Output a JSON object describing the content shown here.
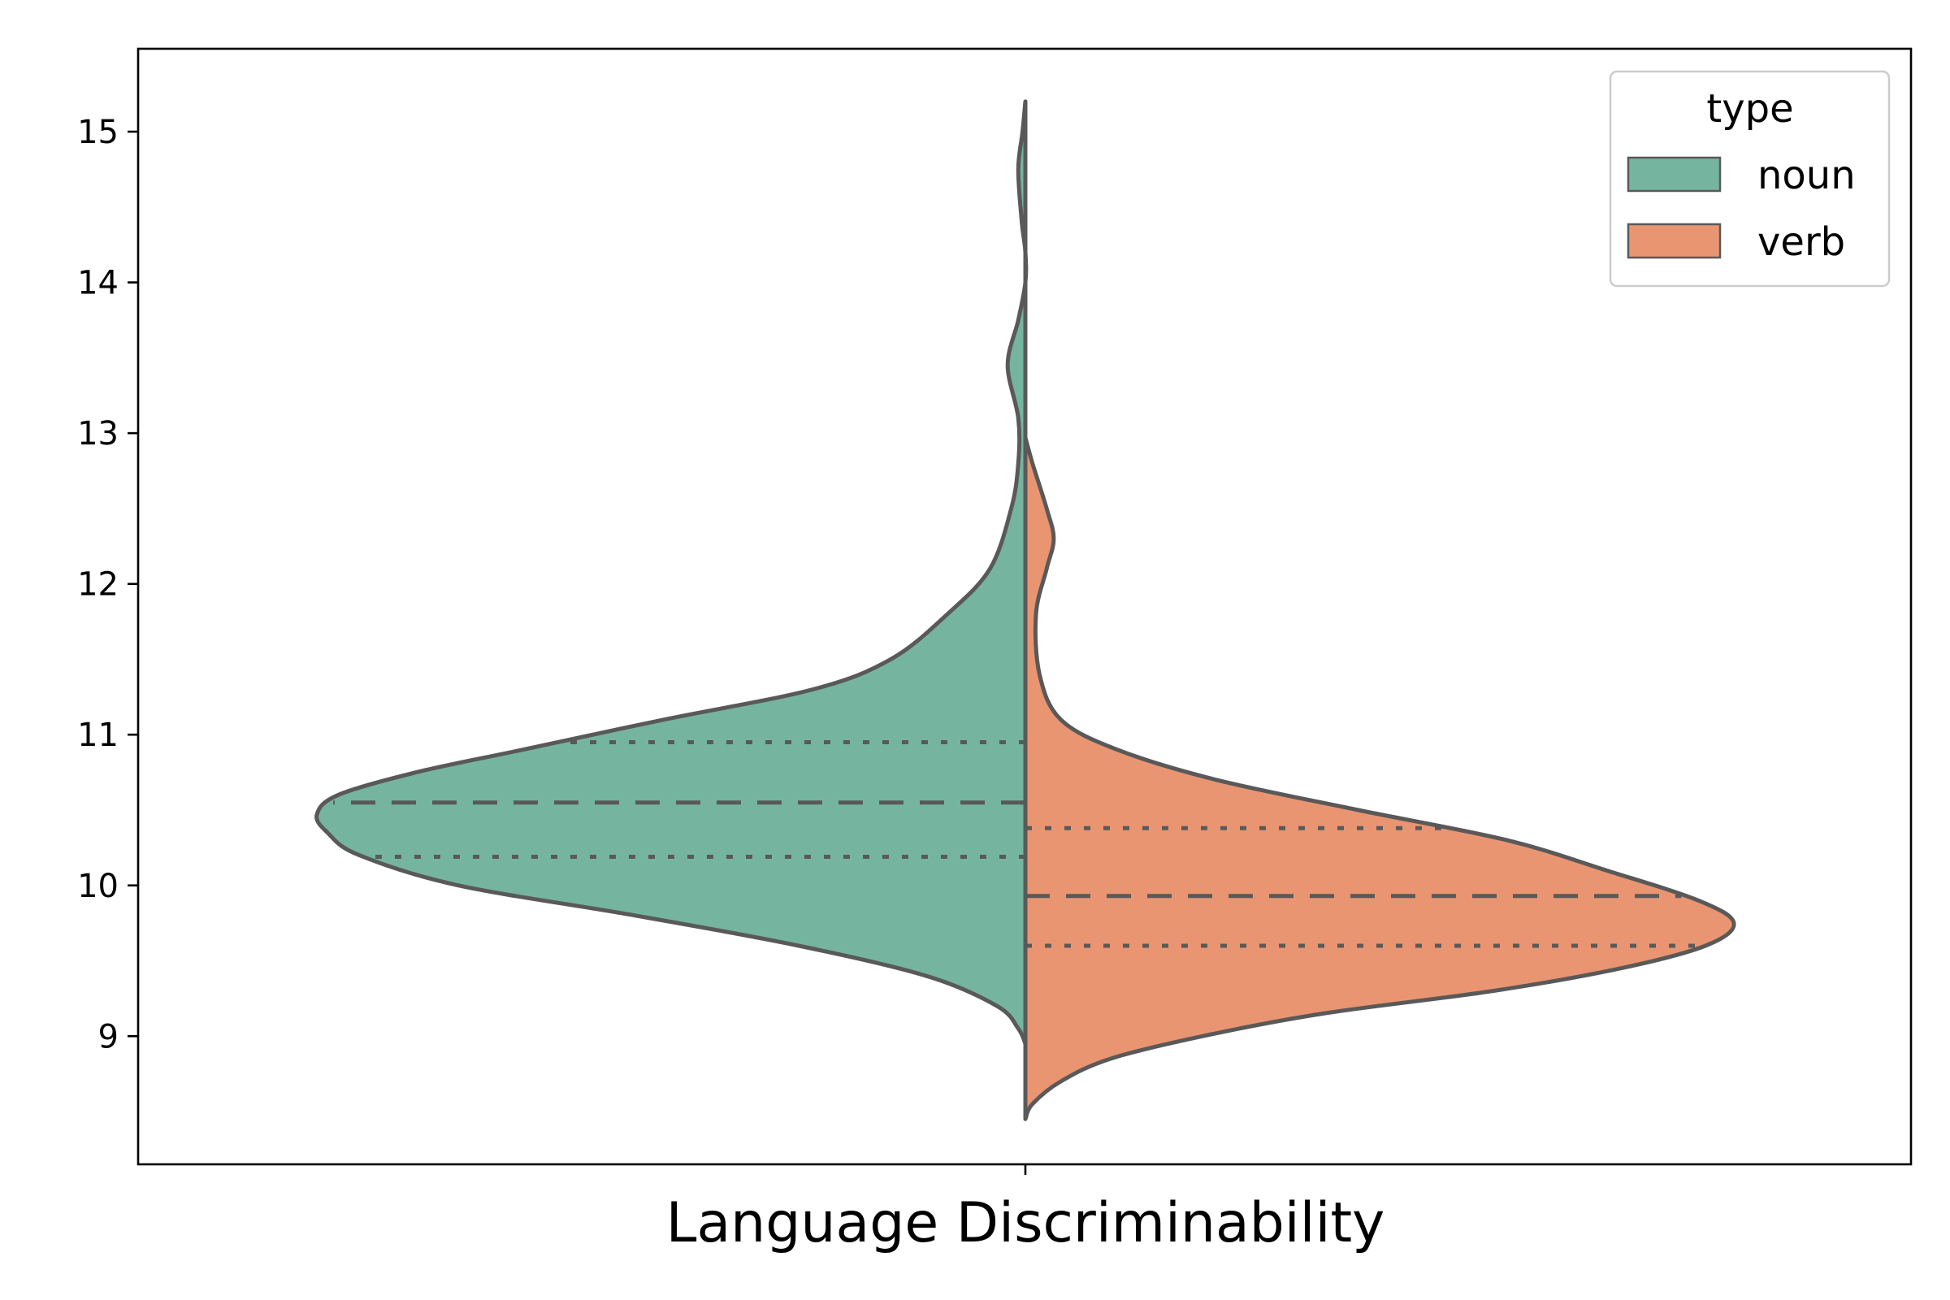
{
  "chart_data": {
    "type": "violin",
    "split": true,
    "xlabel": "Language Discriminability",
    "ylabel": "",
    "ylim": [
      8.15,
      15.55
    ],
    "yticks": [
      9,
      10,
      11,
      12,
      13,
      14,
      15
    ],
    "grid": false,
    "legend": {
      "title": "type",
      "placement": "top-right",
      "entries": [
        "noun",
        "verb"
      ]
    },
    "colors": {
      "noun": "#75b5a0",
      "verb": "#e99572",
      "outline": "#595959"
    },
    "series": [
      {
        "name": "noun",
        "side": "left",
        "color": "#75b5a0",
        "y_min": 8.95,
        "y_max": 15.2,
        "quartiles": {
          "q1": 10.19,
          "median": 10.55,
          "q3": 10.95
        },
        "density_profile": [
          [
            8.95,
            0.0
          ],
          [
            9.05,
            0.01
          ],
          [
            9.2,
            0.04
          ],
          [
            9.4,
            0.14
          ],
          [
            9.6,
            0.32
          ],
          [
            9.8,
            0.55
          ],
          [
            10.0,
            0.8
          ],
          [
            10.2,
            0.94
          ],
          [
            10.35,
            0.985
          ],
          [
            10.47,
            1.0
          ],
          [
            10.6,
            0.97
          ],
          [
            10.75,
            0.86
          ],
          [
            10.9,
            0.71
          ],
          [
            11.1,
            0.51
          ],
          [
            11.3,
            0.3
          ],
          [
            11.5,
            0.19
          ],
          [
            11.8,
            0.11
          ],
          [
            12.1,
            0.05
          ],
          [
            12.5,
            0.02
          ],
          [
            12.8,
            0.01
          ],
          [
            13.1,
            0.01
          ],
          [
            13.45,
            0.025
          ],
          [
            13.75,
            0.01
          ],
          [
            14.0,
            0.0
          ],
          [
            14.2,
            0.0
          ],
          [
            14.4,
            0.005
          ],
          [
            14.75,
            0.01
          ],
          [
            15.0,
            0.004
          ],
          [
            15.2,
            0.0
          ]
        ]
      },
      {
        "name": "verb",
        "side": "right",
        "color": "#e99572",
        "y_min": 8.45,
        "y_max": 12.97,
        "quartiles": {
          "q1": 9.6,
          "median": 9.93,
          "q3": 10.38
        },
        "density_profile": [
          [
            8.45,
            0.0
          ],
          [
            8.55,
            0.01
          ],
          [
            8.7,
            0.05
          ],
          [
            8.85,
            0.12
          ],
          [
            9.0,
            0.25
          ],
          [
            9.15,
            0.42
          ],
          [
            9.3,
            0.66
          ],
          [
            9.45,
            0.84
          ],
          [
            9.6,
            0.96
          ],
          [
            9.75,
            1.0
          ],
          [
            9.9,
            0.95
          ],
          [
            10.1,
            0.82
          ],
          [
            10.3,
            0.68
          ],
          [
            10.5,
            0.47
          ],
          [
            10.7,
            0.27
          ],
          [
            10.9,
            0.13
          ],
          [
            11.1,
            0.05
          ],
          [
            11.4,
            0.02
          ],
          [
            11.8,
            0.015
          ],
          [
            12.1,
            0.03
          ],
          [
            12.3,
            0.04
          ],
          [
            12.5,
            0.03
          ],
          [
            12.8,
            0.01
          ],
          [
            12.97,
            0.0
          ]
        ]
      }
    ]
  }
}
